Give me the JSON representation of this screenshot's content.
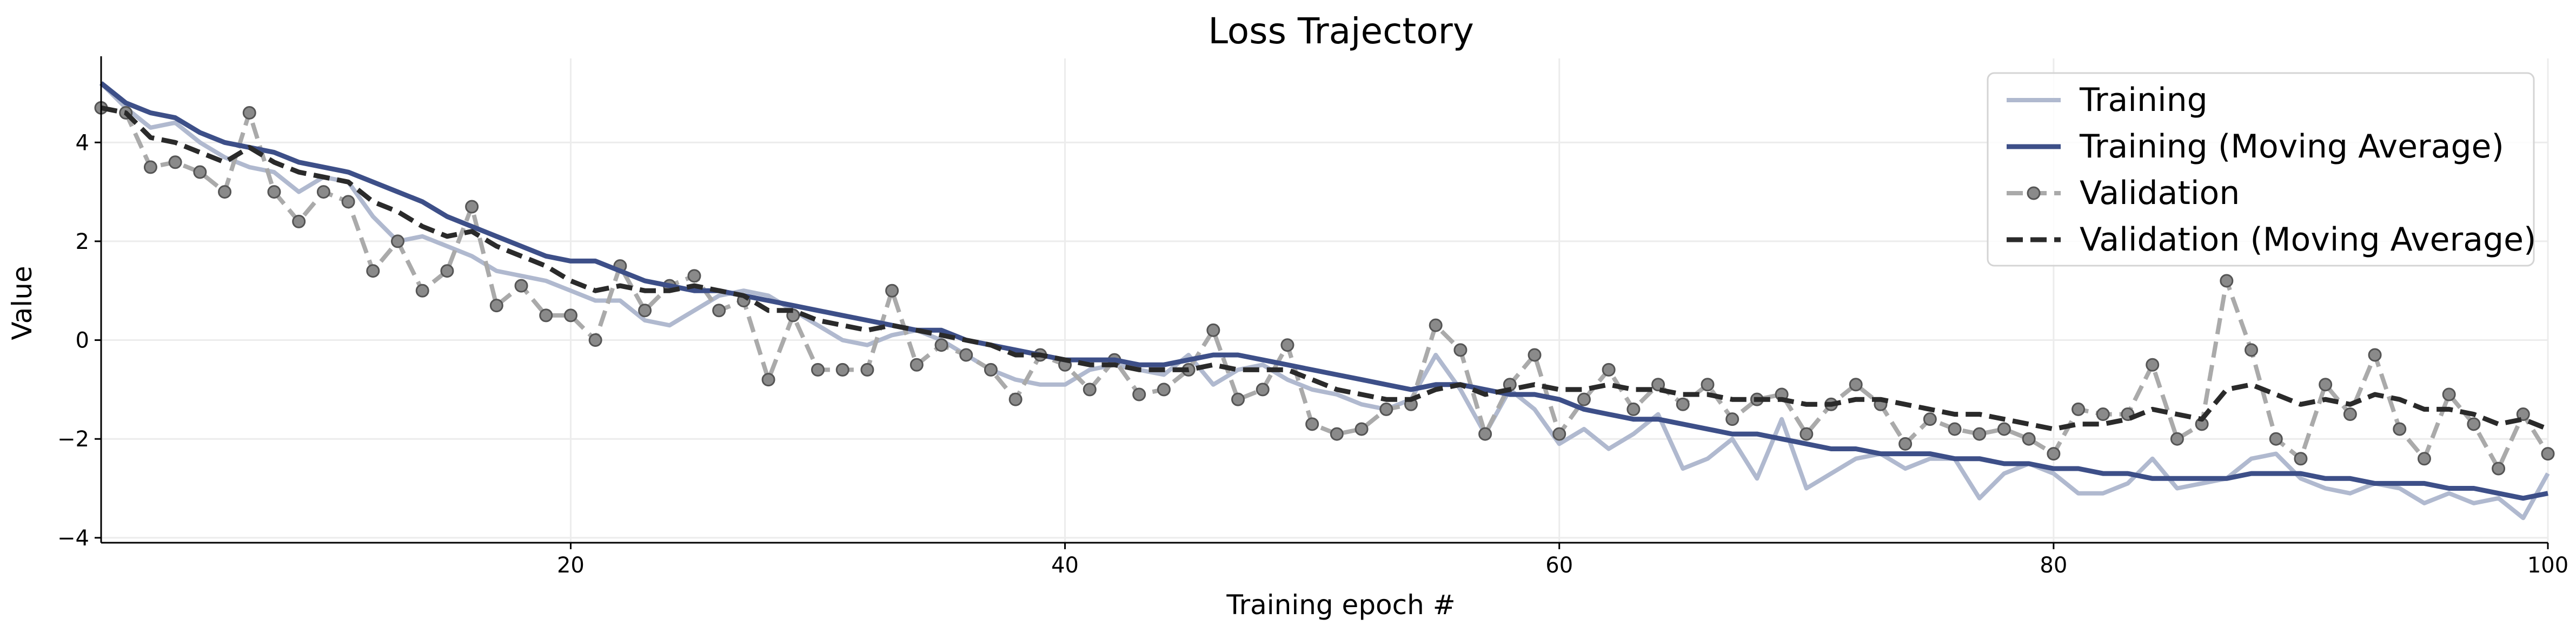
{
  "chart_data": {
    "type": "line",
    "title": "Loss Trajectory",
    "xlabel": "Training epoch #",
    "ylabel": "Value",
    "xlim": [
      1,
      100
    ],
    "ylim": [
      -4.1,
      5.7
    ],
    "xticks": [
      20,
      40,
      60,
      80,
      100
    ],
    "yticks": [
      -4,
      -2,
      0,
      2,
      4
    ],
    "grid": true,
    "legend_position": "top-right",
    "x": [
      1,
      2,
      3,
      4,
      5,
      6,
      7,
      8,
      9,
      10,
      11,
      12,
      13,
      14,
      15,
      16,
      17,
      18,
      19,
      20,
      21,
      22,
      23,
      24,
      25,
      26,
      27,
      28,
      29,
      30,
      31,
      32,
      33,
      34,
      35,
      36,
      37,
      38,
      39,
      40,
      41,
      42,
      43,
      44,
      45,
      46,
      47,
      48,
      49,
      50,
      51,
      52,
      53,
      54,
      55,
      56,
      57,
      58,
      59,
      60,
      61,
      62,
      63,
      64,
      65,
      66,
      67,
      68,
      69,
      70,
      71,
      72,
      73,
      74,
      75,
      76,
      77,
      78,
      79,
      80,
      81,
      82,
      83,
      84,
      85,
      86,
      87,
      88,
      89,
      90,
      91,
      92,
      93,
      94,
      95,
      96,
      97,
      98,
      99,
      100
    ],
    "series": [
      {
        "name": "Training",
        "color": "#b0b9cf",
        "style": "solid",
        "values": [
          5.2,
          4.7,
          4.3,
          4.4,
          4.0,
          3.7,
          3.5,
          3.4,
          3.0,
          3.3,
          3.2,
          2.5,
          2.0,
          2.1,
          1.9,
          1.7,
          1.4,
          1.3,
          1.2,
          1.0,
          0.8,
          0.8,
          0.4,
          0.3,
          0.6,
          0.9,
          1.0,
          0.9,
          0.6,
          0.3,
          0.0,
          -0.1,
          0.1,
          0.2,
          0.0,
          -0.3,
          -0.6,
          -0.8,
          -0.9,
          -0.9,
          -0.6,
          -0.5,
          -0.6,
          -0.7,
          -0.3,
          -0.9,
          -0.6,
          -0.5,
          -0.8,
          -1.0,
          -1.1,
          -1.3,
          -1.4,
          -1.2,
          -0.3,
          -1.0,
          -1.9,
          -1.0,
          -1.4,
          -2.1,
          -1.8,
          -2.2,
          -1.9,
          -1.5,
          -2.6,
          -2.4,
          -2.0,
          -2.8,
          -1.6,
          -3.0,
          -2.7,
          -2.4,
          -2.3,
          -2.6,
          -2.4,
          -2.4,
          -3.2,
          -2.7,
          -2.5,
          -2.7,
          -3.1,
          -3.1,
          -2.9,
          -2.4,
          -3.0,
          -2.9,
          -2.8,
          -2.4,
          -2.3,
          -2.8,
          -3.0,
          -3.1,
          -2.9,
          -3.0,
          -3.3,
          -3.1,
          -3.3,
          -3.2,
          -3.6,
          -2.7
        ]
      },
      {
        "name": "Training (Moving Average)",
        "color": "#3d4f88",
        "style": "solid",
        "values": [
          5.2,
          4.8,
          4.6,
          4.5,
          4.2,
          4.0,
          3.9,
          3.8,
          3.6,
          3.5,
          3.4,
          3.2,
          3.0,
          2.8,
          2.5,
          2.3,
          2.1,
          1.9,
          1.7,
          1.6,
          1.6,
          1.4,
          1.2,
          1.1,
          1.0,
          1.0,
          0.9,
          0.8,
          0.7,
          0.6,
          0.5,
          0.4,
          0.3,
          0.2,
          0.2,
          0.0,
          -0.1,
          -0.2,
          -0.3,
          -0.4,
          -0.4,
          -0.4,
          -0.5,
          -0.5,
          -0.4,
          -0.3,
          -0.3,
          -0.4,
          -0.5,
          -0.6,
          -0.7,
          -0.8,
          -0.9,
          -1.0,
          -0.9,
          -0.9,
          -1.0,
          -1.1,
          -1.1,
          -1.2,
          -1.4,
          -1.5,
          -1.6,
          -1.6,
          -1.7,
          -1.8,
          -1.9,
          -1.9,
          -2.0,
          -2.1,
          -2.2,
          -2.2,
          -2.3,
          -2.3,
          -2.3,
          -2.4,
          -2.4,
          -2.5,
          -2.5,
          -2.6,
          -2.6,
          -2.7,
          -2.7,
          -2.8,
          -2.8,
          -2.8,
          -2.8,
          -2.7,
          -2.7,
          -2.7,
          -2.8,
          -2.8,
          -2.9,
          -2.9,
          -2.9,
          -3.0,
          -3.0,
          -3.1,
          -3.2,
          -3.1
        ]
      },
      {
        "name": "Validation",
        "color": "#aaaaaa",
        "style": "dashed-markers",
        "values": [
          4.7,
          4.6,
          3.5,
          3.6,
          3.4,
          3.0,
          4.6,
          3.0,
          2.4,
          3.0,
          2.8,
          1.4,
          2.0,
          1.0,
          1.4,
          2.7,
          0.7,
          1.1,
          0.5,
          0.5,
          0.0,
          1.5,
          0.6,
          1.1,
          1.3,
          0.6,
          0.8,
          -0.8,
          0.5,
          -0.6,
          -0.6,
          -0.6,
          1.0,
          -0.5,
          -0.1,
          -0.3,
          -0.6,
          -1.2,
          -0.3,
          -0.5,
          -1.0,
          -0.4,
          -1.1,
          -1.0,
          -0.6,
          0.2,
          -1.2,
          -1.0,
          -0.1,
          -1.7,
          -1.9,
          -1.8,
          -1.4,
          -1.3,
          0.3,
          -0.2,
          -1.9,
          -0.9,
          -0.3,
          -1.9,
          -1.2,
          -0.6,
          -1.4,
          -0.9,
          -1.3,
          -0.9,
          -1.6,
          -1.2,
          -1.1,
          -1.9,
          -1.3,
          -0.9,
          -1.3,
          -2.1,
          -1.6,
          -1.8,
          -1.9,
          -1.8,
          -2.0,
          -2.3,
          -1.4,
          -1.5,
          -1.5,
          -0.5,
          -2.0,
          -1.7,
          1.2,
          -0.2,
          -2.0,
          -2.4,
          -0.9,
          -1.5,
          -0.3,
          -1.8,
          -2.4,
          -1.1,
          -1.7,
          -2.6,
          -1.5,
          -2.3
        ]
      },
      {
        "name": "Validation (Moving Average)",
        "color": "#2a2a2a",
        "style": "dashed",
        "values": [
          4.7,
          4.6,
          4.1,
          4.0,
          3.8,
          3.6,
          3.9,
          3.6,
          3.4,
          3.3,
          3.2,
          2.8,
          2.6,
          2.3,
          2.1,
          2.2,
          1.9,
          1.7,
          1.5,
          1.2,
          1.0,
          1.1,
          1.0,
          1.0,
          1.1,
          1.0,
          0.9,
          0.6,
          0.6,
          0.4,
          0.3,
          0.2,
          0.3,
          0.2,
          0.1,
          0.0,
          -0.1,
          -0.3,
          -0.3,
          -0.4,
          -0.5,
          -0.5,
          -0.6,
          -0.6,
          -0.6,
          -0.5,
          -0.6,
          -0.6,
          -0.6,
          -0.8,
          -1.0,
          -1.1,
          -1.2,
          -1.2,
          -1.0,
          -0.9,
          -1.1,
          -1.0,
          -0.9,
          -1.0,
          -1.0,
          -0.9,
          -1.0,
          -1.0,
          -1.1,
          -1.1,
          -1.2,
          -1.2,
          -1.2,
          -1.3,
          -1.3,
          -1.2,
          -1.2,
          -1.3,
          -1.4,
          -1.5,
          -1.5,
          -1.6,
          -1.7,
          -1.8,
          -1.7,
          -1.7,
          -1.6,
          -1.4,
          -1.5,
          -1.6,
          -1.0,
          -0.9,
          -1.1,
          -1.3,
          -1.2,
          -1.3,
          -1.1,
          -1.2,
          -1.4,
          -1.4,
          -1.5,
          -1.7,
          -1.6,
          -1.8
        ]
      }
    ]
  }
}
